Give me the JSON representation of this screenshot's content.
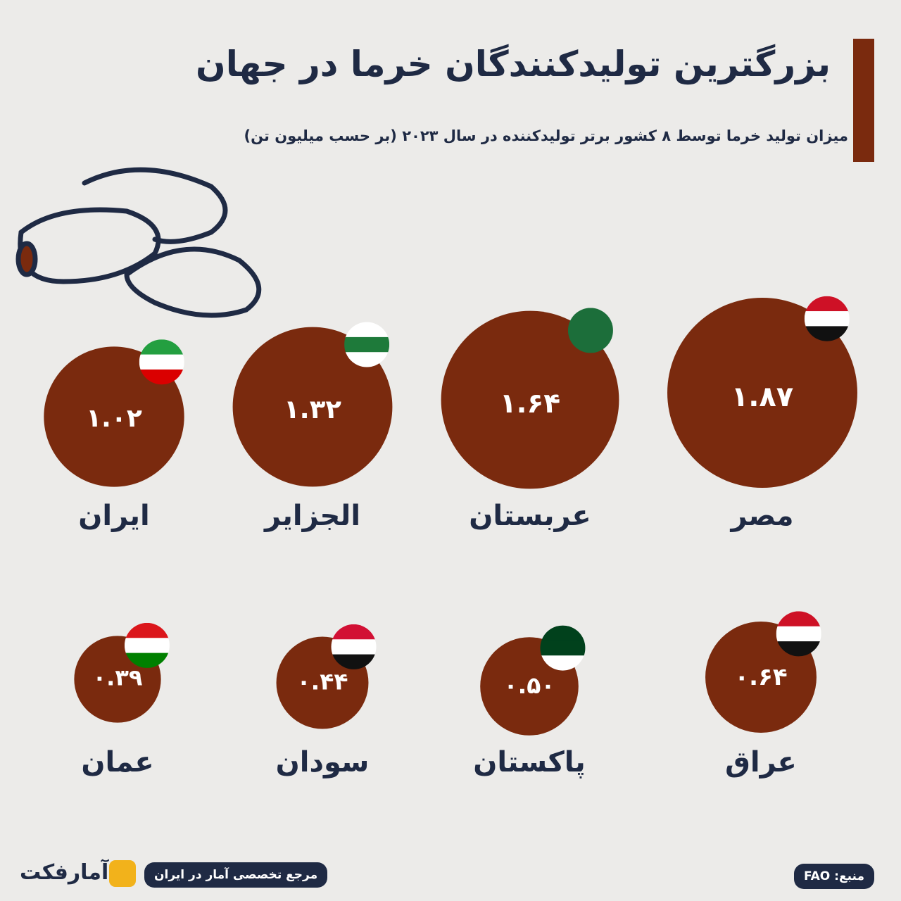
{
  "chart_data": {
    "type": "bubble",
    "title": "بزرگترین تولیدکنندگان خرما در جهان",
    "subtitle": "میزان تولید خرما توسط ۸ کشور برتر تولیدکننده در سال ۲۰۲۳ (بر حسب میلیون تن)",
    "categories": [
      "مصر",
      "عربستان",
      "الجزایر",
      "ایران",
      "عراق",
      "پاکستان",
      "سودان",
      "عمان"
    ],
    "values": [
      1.87,
      1.64,
      1.32,
      1.02,
      0.64,
      0.5,
      0.44,
      0.39
    ],
    "value_labels": [
      "۱.۸۷",
      "۱.۶۴",
      "۱.۳۲",
      "۱.۰۲",
      "۰.۶۴",
      "۰.۵۰",
      "۰.۴۴",
      "۰.۳۹"
    ],
    "color": "#7a2a0e"
  },
  "footer": {
    "source": "منبع: FAO",
    "tagline": "مرجع تخصصی آمار در ایران",
    "brand": "آمارفکت"
  }
}
